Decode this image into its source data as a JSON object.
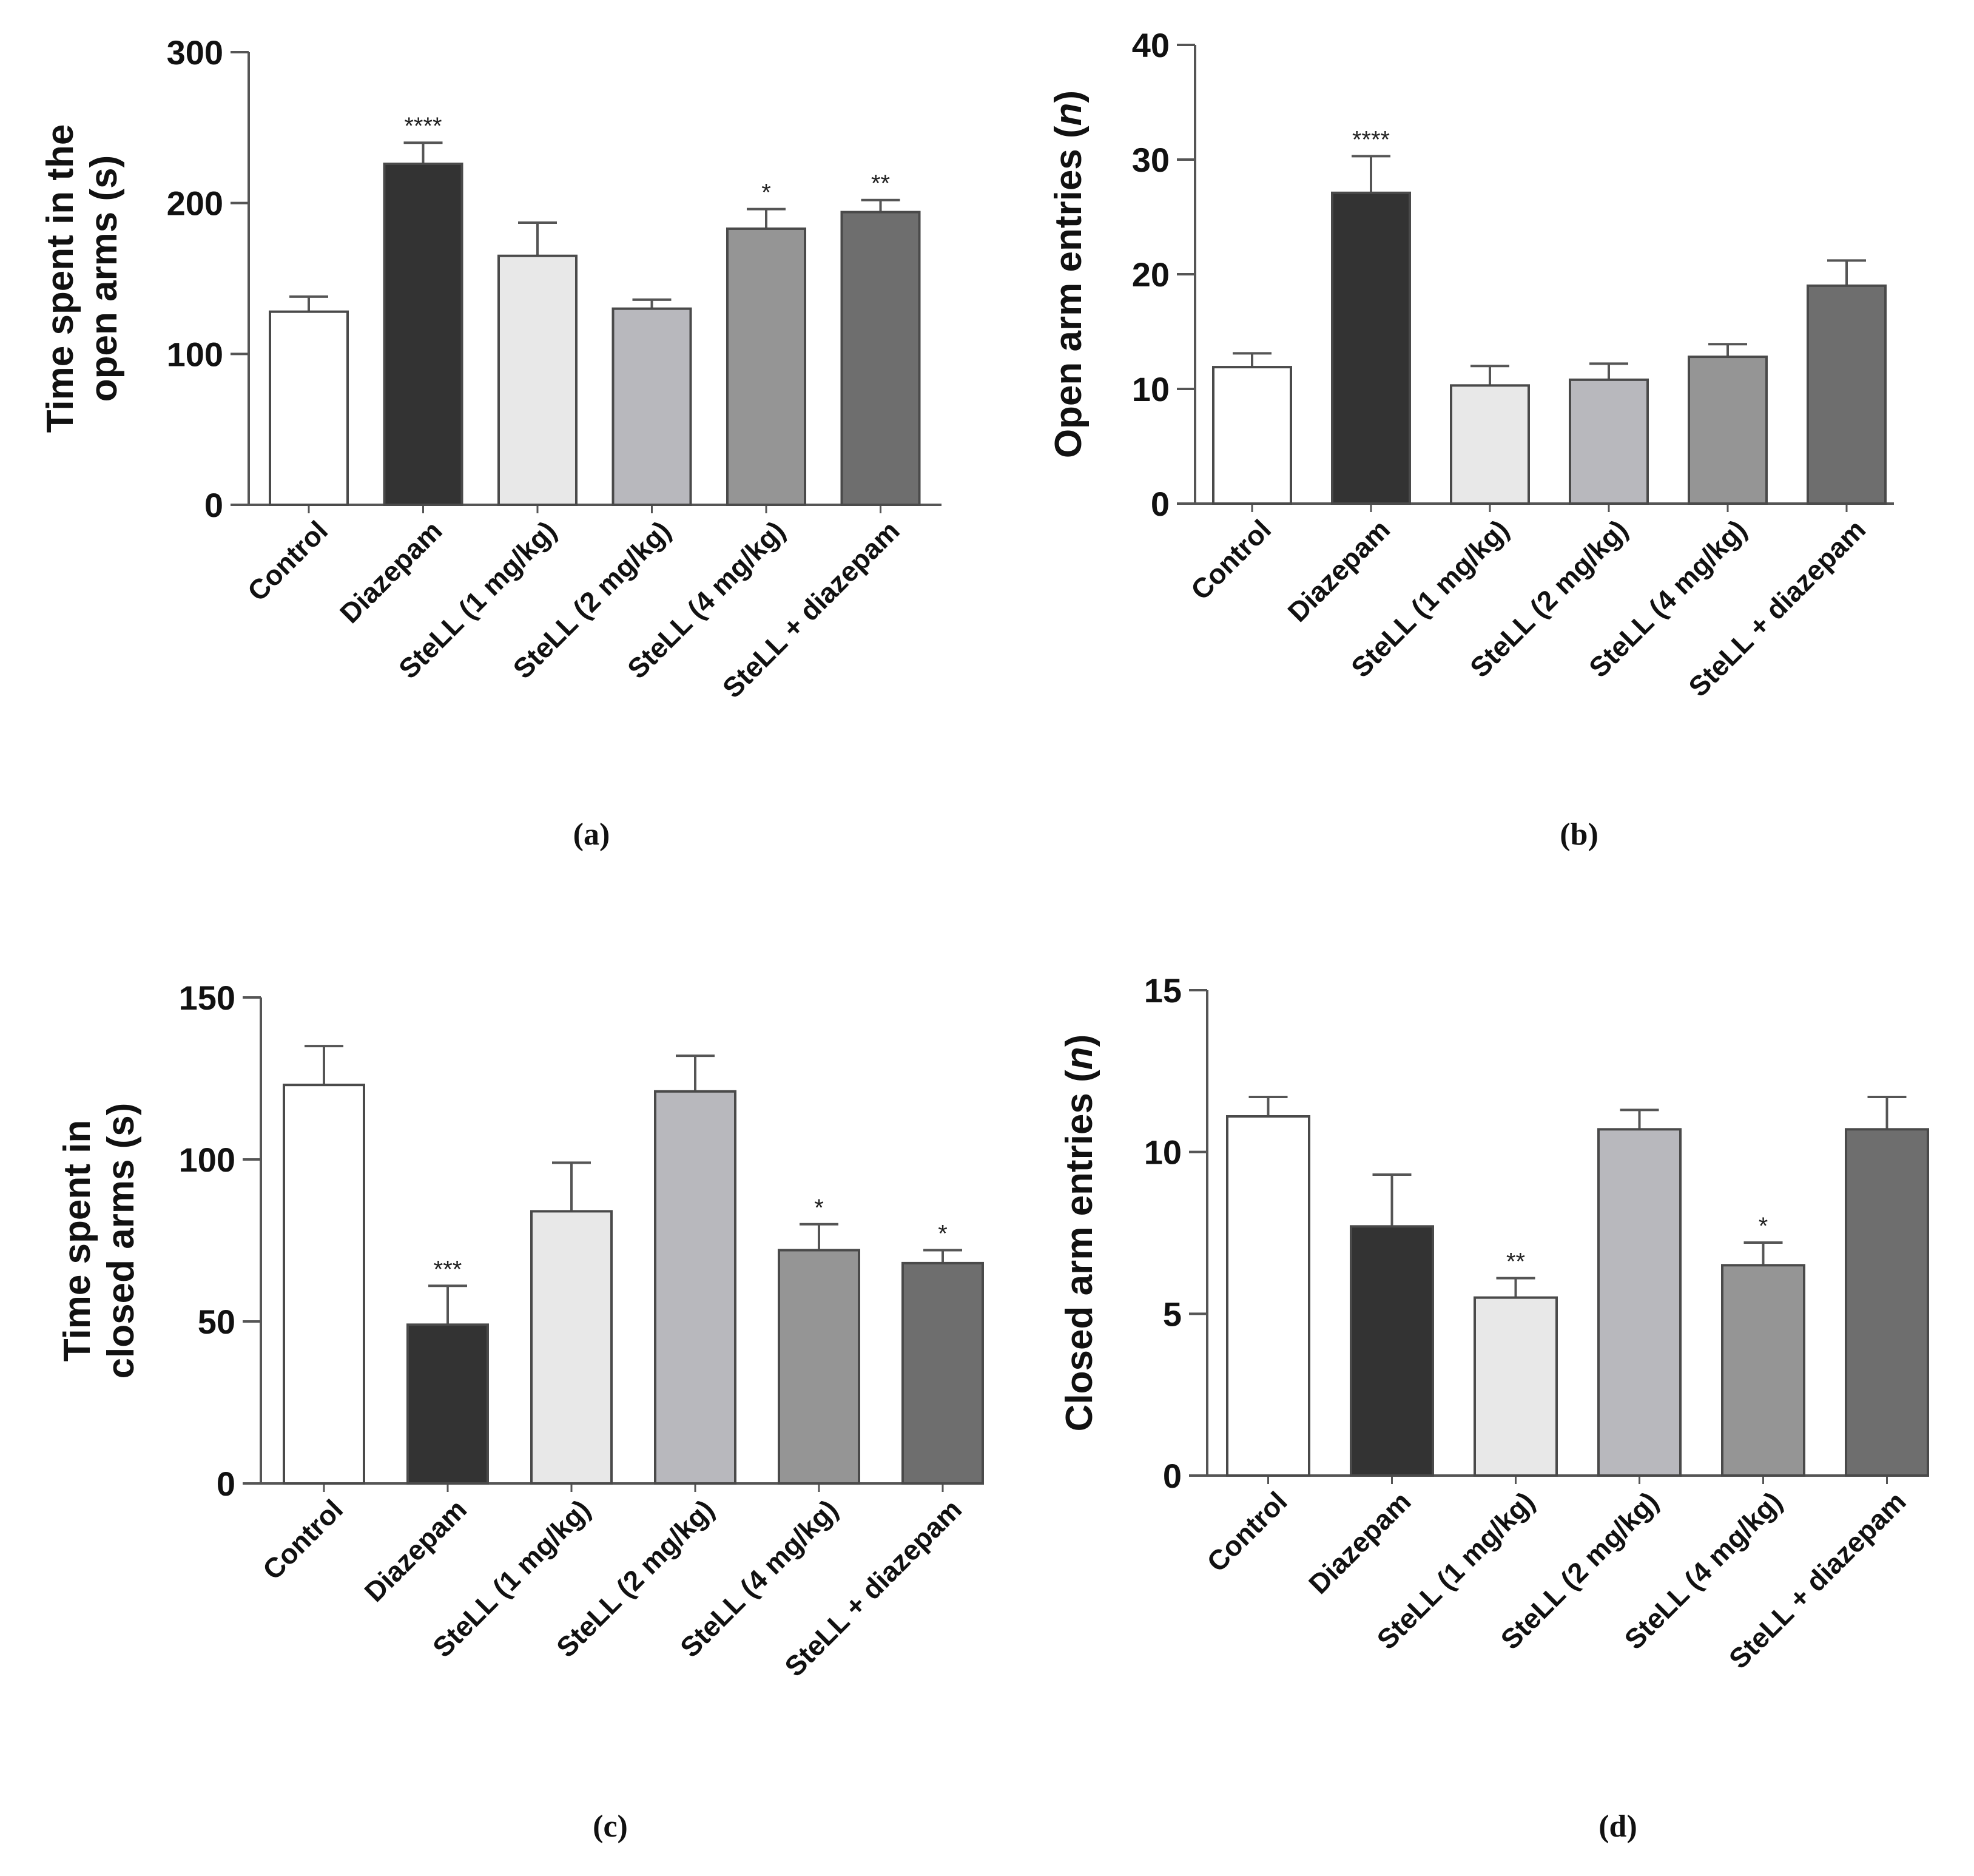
{
  "chart_data": [
    {
      "type": "bar",
      "panel_label": "(a)",
      "ylabel": [
        "Time spent in the",
        "open arms (s)"
      ],
      "categories": [
        "Control",
        "Diazepam",
        "SteLL (1 mg/kg)",
        "SteLL (2 mg/kg)",
        "SteLL (4 mg/kg)",
        "SteLL + diazepam"
      ],
      "values": [
        128,
        226,
        165,
        130,
        183,
        194
      ],
      "errors": [
        10,
        14,
        22,
        6,
        13,
        8
      ],
      "significance": [
        "",
        "****",
        "",
        "",
        "*",
        "**"
      ],
      "bar_colors": [
        "#ffffff",
        "#333333",
        "#e8e8e8",
        "#b8b8bd",
        "#959595",
        "#6e6e6e"
      ],
      "ylim": [
        0,
        300
      ],
      "yticks": [
        "0",
        "100",
        "200",
        "300"
      ]
    },
    {
      "type": "bar",
      "panel_label": "(b)",
      "ylabel": [
        "Open arm entries (",
        "n",
        ")"
      ],
      "categories": [
        "Control",
        "Diazepam",
        "SteLL (1 mg/kg)",
        "SteLL (2 mg/kg)",
        "SteLL (4 mg/kg)",
        "SteLL + diazepam"
      ],
      "values": [
        11.9,
        27.1,
        10.3,
        10.8,
        12.8,
        19.0
      ],
      "errors": [
        1.2,
        3.2,
        1.7,
        1.4,
        1.1,
        2.2
      ],
      "significance": [
        "",
        "****",
        "",
        "",
        "",
        ""
      ],
      "bar_colors": [
        "#ffffff",
        "#333333",
        "#e8e8e8",
        "#b8b8bd",
        "#959595",
        "#6e6e6e"
      ],
      "ylim": [
        0,
        40
      ],
      "yticks": [
        "0",
        "10",
        "20",
        "30",
        "40"
      ]
    },
    {
      "type": "bar",
      "panel_label": "(c)",
      "ylabel": [
        "Time spent in",
        "closed arms (s)"
      ],
      "categories": [
        "Control",
        "Diazepam",
        "SteLL (1 mg/kg)",
        "SteLL (2 mg/kg)",
        "SteLL (4 mg/kg)",
        "SteLL + diazepam"
      ],
      "values": [
        123,
        49,
        84,
        121,
        72,
        68
      ],
      "errors": [
        12,
        12,
        15,
        11,
        8,
        4
      ],
      "significance": [
        "",
        "***",
        "",
        "",
        "*",
        "*"
      ],
      "bar_colors": [
        "#ffffff",
        "#333333",
        "#e8e8e8",
        "#b8b8bd",
        "#959595",
        "#6e6e6e"
      ],
      "ylim": [
        0,
        150
      ],
      "yticks": [
        "0",
        "50",
        "100",
        "150"
      ]
    },
    {
      "type": "bar",
      "panel_label": "(d)",
      "ylabel": [
        "Closed arm entries (",
        "n",
        ")"
      ],
      "categories": [
        "Control",
        "Diazepam",
        "SteLL (1 mg/kg)",
        "SteLL (2 mg/kg)",
        "SteLL (4 mg/kg)",
        "SteLL + diazepam"
      ],
      "values": [
        11.1,
        7.7,
        5.5,
        10.7,
        6.5,
        10.7
      ],
      "errors": [
        0.6,
        1.6,
        0.6,
        0.6,
        0.7,
        1.0
      ],
      "significance": [
        "",
        "",
        "**",
        "",
        "*",
        ""
      ],
      "bar_colors": [
        "#ffffff",
        "#333333",
        "#e8e8e8",
        "#b8b8bd",
        "#959595",
        "#6e6e6e"
      ],
      "ylim": [
        0,
        15
      ],
      "yticks": [
        "0",
        "5",
        "10",
        "15"
      ]
    }
  ]
}
